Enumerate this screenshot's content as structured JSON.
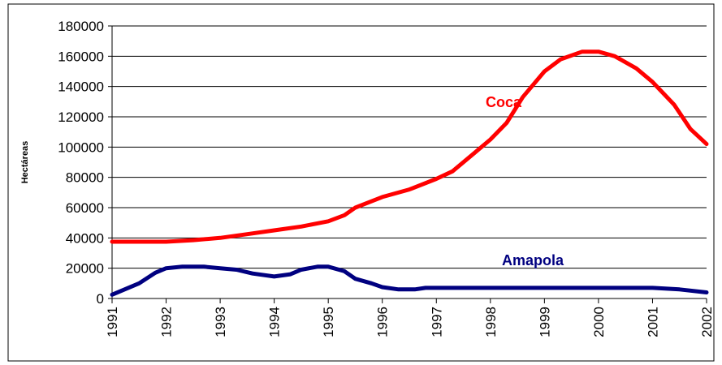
{
  "chart_data": {
    "type": "line",
    "y_label": "Hectáreas",
    "series": [
      {
        "name": "Coca",
        "color": "#ff0000",
        "x": [
          1991,
          1991.5,
          1992,
          1992.5,
          1993,
          1993.5,
          1994,
          1994.5,
          1995,
          1995.3,
          1995.5,
          1996,
          1996.5,
          1997,
          1997.3,
          1997.7,
          1998,
          1998.3,
          1998.6,
          1999,
          1999.3,
          1999.7,
          2000,
          2000.3,
          2000.7,
          2001,
          2001.4,
          2001.7,
          2002
        ],
        "values": [
          37500,
          37500,
          37500,
          38500,
          40000,
          42500,
          45000,
          47500,
          51000,
          55000,
          60000,
          67000,
          72000,
          79000,
          84000,
          96000,
          105000,
          116000,
          133000,
          150000,
          158000,
          163000,
          163000,
          160000,
          152000,
          143000,
          128000,
          112000,
          102000
        ]
      },
      {
        "name": "Amapola",
        "color": "#000080",
        "x": [
          1991,
          1991.5,
          1991.8,
          1992,
          1992.3,
          1992.7,
          1993,
          1993.3,
          1993.6,
          1994,
          1994.3,
          1994.5,
          1994.8,
          1995,
          1995.3,
          1995.5,
          1995.8,
          1996,
          1996.3,
          1996.6,
          1996.8,
          2001,
          2001.5,
          2002
        ],
        "values": [
          2500,
          10000,
          17000,
          20000,
          21000,
          21000,
          20000,
          19000,
          16500,
          14500,
          16000,
          19000,
          21000,
          21000,
          18000,
          13000,
          10000,
          7500,
          6000,
          6000,
          7000,
          7000,
          6000,
          4000
        ]
      }
    ],
    "xlim": [
      1991,
      2002
    ],
    "xticks": [
      1991,
      1992,
      1993,
      1994,
      1995,
      1996,
      1997,
      1998,
      1999,
      2000,
      2001,
      2002
    ],
    "ylim": [
      0,
      180000
    ],
    "yticks": [
      0,
      20000,
      40000,
      60000,
      80000,
      100000,
      120000,
      140000,
      160000,
      180000
    ],
    "grid": true
  }
}
